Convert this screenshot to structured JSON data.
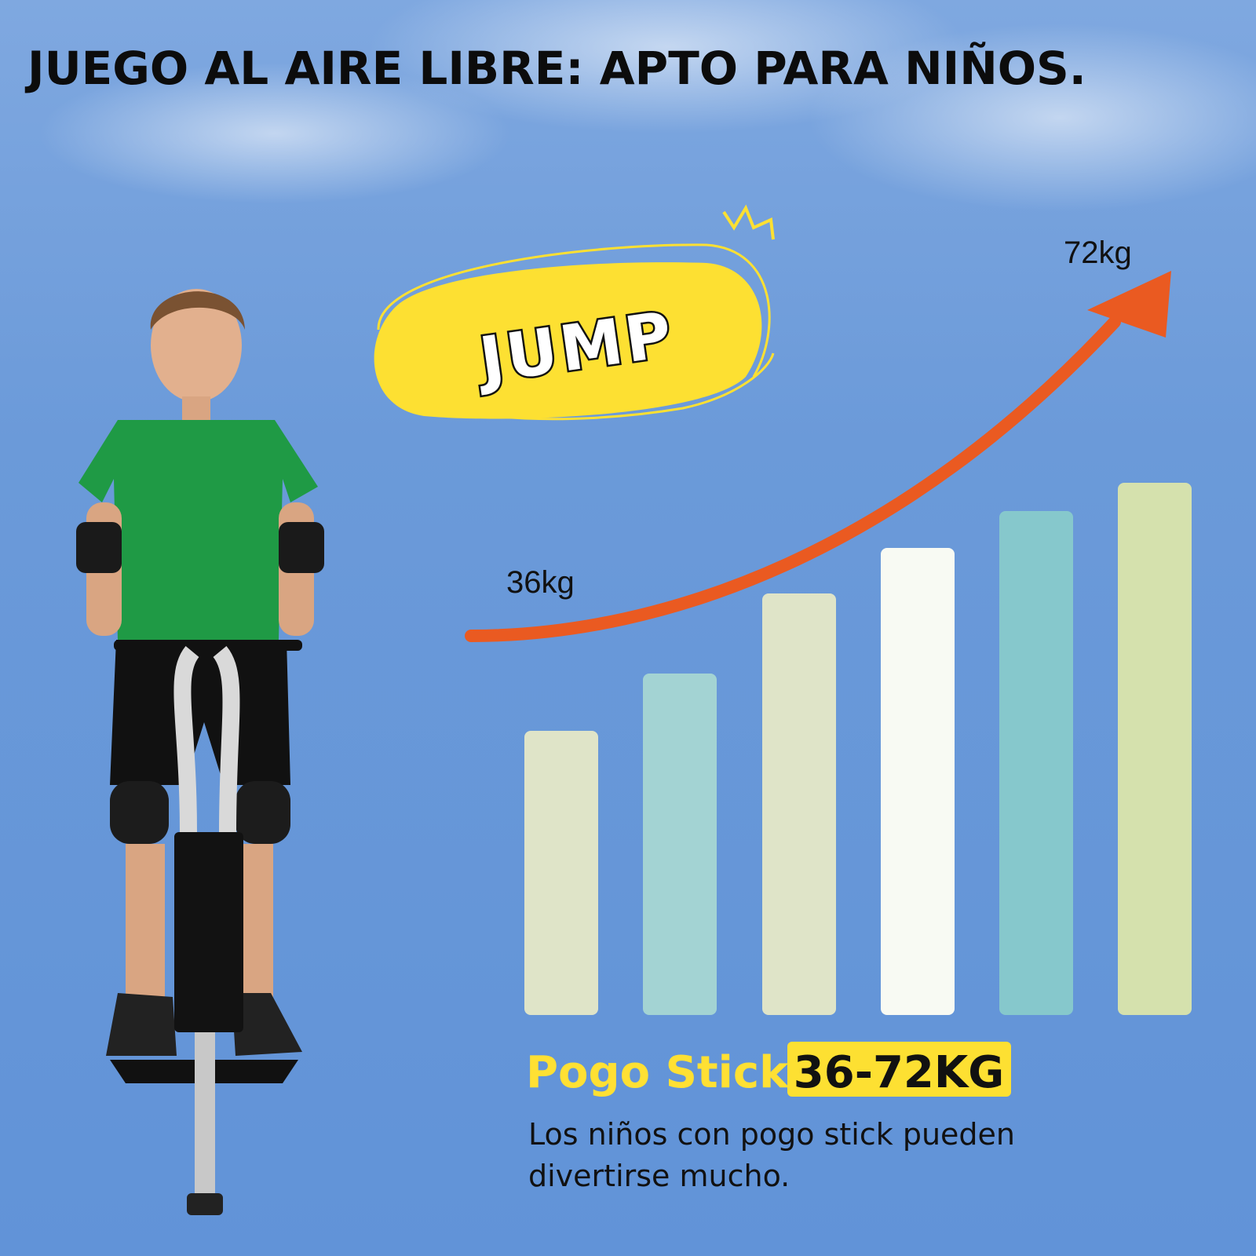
{
  "header": {
    "title": "JUEGO AL AIRE LIBRE: APTO PARA NIÑOS."
  },
  "badge": {
    "label": "JUMP"
  },
  "arrow": {
    "start_label": "36kg",
    "end_label": "72kg"
  },
  "product": {
    "name": "Pogo Stick:",
    "range": "36-72KG",
    "description": [
      "Los niños con pogo stick pueden",
      "divertirse mucho."
    ]
  }
}
